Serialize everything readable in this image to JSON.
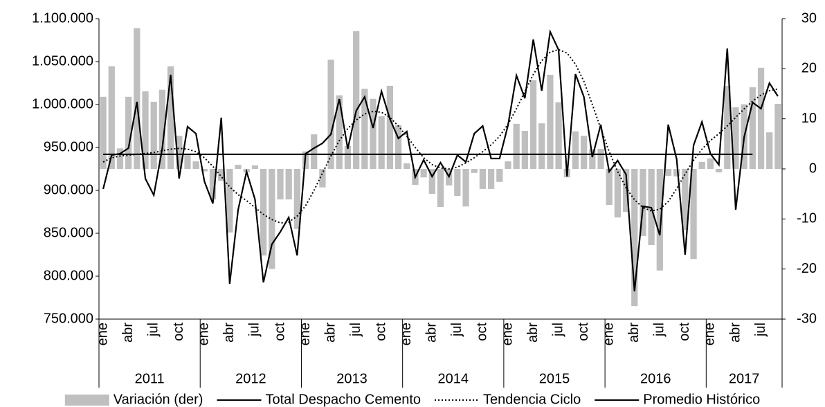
{
  "chart_data": {
    "type": "bar_line",
    "categories": [
      "ene",
      null,
      null,
      "abr",
      null,
      null,
      "jul",
      null,
      null,
      "oct",
      null,
      null,
      "ene",
      null,
      null,
      "abr",
      null,
      null,
      "jul",
      null,
      null,
      "oct",
      null,
      null,
      "ene",
      null,
      null,
      "abr",
      null,
      null,
      "jul",
      null,
      null,
      "oct",
      null,
      null,
      "ene",
      null,
      null,
      "abr",
      null,
      null,
      "jul",
      null,
      null,
      "oct",
      null,
      null,
      "ene",
      null,
      null,
      "abr",
      null,
      null,
      "jul",
      null,
      null,
      "oct",
      null,
      null,
      "ene",
      null,
      null,
      "abr",
      null,
      null,
      "jul",
      null,
      null,
      "oct",
      null,
      null,
      "ene",
      null,
      null,
      "abr",
      null,
      null,
      "jul",
      null,
      null
    ],
    "years": [
      "2011",
      "2012",
      "2013",
      "2014",
      "2015",
      "2016",
      "2017"
    ],
    "series": [
      {
        "name": "Variación (der)",
        "type": "bar",
        "axis": "y2",
        "color": "#bfbfbf",
        "values": [
          14.4,
          20.5,
          4.1,
          14.4,
          28.1,
          15.5,
          13.4,
          15.8,
          20.5,
          6.6,
          3.0,
          1.5,
          -0.5,
          -6.1,
          -2.4,
          -12.7,
          0.8,
          -0.7,
          0.7,
          -17.3,
          -20.0,
          -6.1,
          -6.1,
          -12.0,
          3.5,
          6.9,
          -3.7,
          21.8,
          14.7,
          4.6,
          27.5,
          16.0,
          14.0,
          10.5,
          16.6,
          8.7,
          1.1,
          -3.2,
          -1.7,
          -5.0,
          -7.6,
          -3.3,
          -5.4,
          -7.5,
          -0.8,
          -4.0,
          -4.0,
          -2.6,
          1.5,
          9.0,
          7.6,
          17.7,
          9.1,
          18.8,
          13.3,
          -1.7,
          7.5,
          6.6,
          3.9,
          4.0,
          -7.2,
          -9.7,
          -8.6,
          -27.4,
          -13.4,
          -15.2,
          -20.3,
          -1.4,
          -1.5,
          -12.2,
          -18.0,
          1.4,
          2.1,
          -0.7,
          16.6,
          12.3,
          12.9,
          16.3,
          20.2,
          7.3,
          13.0
        ]
      },
      {
        "name": "Total Despacho Cemento",
        "type": "line",
        "color": "#000000",
        "values": [
          901600,
          941100,
          942700,
          949200,
          1003200,
          913700,
          894400,
          948400,
          1034700,
          913700,
          974200,
          966100,
          910500,
          884700,
          984700,
          791100,
          877400,
          921800,
          889500,
          792700,
          837100,
          851600,
          868500,
          824200,
          942700,
          949200,
          954800,
          965300,
          1006400,
          948400,
          992700,
          1008900,
          972600,
          1015300,
          983100,
          960500,
          968500,
          915300,
          935500,
          916100,
          932300,
          916100,
          941100,
          933100,
          966100,
          975000,
          937100,
          937100,
          975800,
          1033900,
          1007300,
          1075800,
          1016100,
          1084700,
          1063700,
          916100,
          1035500,
          1008900,
          938700,
          976600,
          921800,
          934700,
          918500,
          782300,
          881400,
          879800,
          847600,
          976600,
          936300,
          825000,
          952400,
          979800,
          942700,
          929800,
          1065300,
          877400,
          962100,
          1002400,
          995200,
          1025000,
          1009700
        ]
      },
      {
        "name": "Tendencia Ciclo",
        "type": "line",
        "dash": "dotted",
        "color": "#000000",
        "values": [
          933000,
          938000,
          940000,
          941000,
          942000,
          943000,
          944000,
          946000,
          948000,
          949000,
          948000,
          945000,
          938000,
          928000,
          916000,
          904000,
          895000,
          888000,
          880000,
          872000,
          866000,
          862000,
          863000,
          870000,
          882000,
          900000,
          920000,
          940000,
          958000,
          972000,
          982000,
          989000,
          992000,
          991000,
          985000,
          975000,
          963000,
          950000,
          938000,
          930000,
          926000,
          925000,
          927000,
          932000,
          938000,
          945000,
          953000,
          963000,
          977000,
          995000,
          1015000,
          1035000,
          1051000,
          1061000,
          1064000,
          1060000,
          1047000,
          1027000,
          1000000,
          972000,
          945000,
          922000,
          903000,
          889000,
          880000,
          876000,
          878000,
          887000,
          902000,
          919000,
          935000,
          948000,
          958000,
          966000,
          975000,
          985000,
          995000,
          1004000,
          1011000,
          1016000,
          1018000
        ]
      },
      {
        "name": "Promedio Histórico",
        "type": "line",
        "color": "#000000",
        "values": [
          942000,
          942000,
          942000,
          942000,
          942000,
          942000,
          942000,
          942000,
          942000,
          942000,
          942000,
          942000,
          942000,
          942000,
          942000,
          942000,
          942000,
          942000,
          942000,
          942000,
          942000,
          942000,
          942000,
          942000,
          942000,
          942000,
          942000,
          942000,
          942000,
          942000,
          942000,
          942000,
          942000,
          942000,
          942000,
          942000,
          942000,
          942000,
          942000,
          942000,
          942000,
          942000,
          942000,
          942000,
          942000,
          942000,
          942000,
          942000,
          942000,
          942000,
          942000,
          942000,
          942000,
          942000,
          942000,
          942000,
          942000,
          942000,
          942000,
          942000,
          942000,
          942000,
          942000,
          942000,
          942000,
          942000,
          942000,
          942000,
          942000,
          942000,
          942000,
          942000,
          942000,
          942000,
          942000,
          942000,
          942000,
          942000,
          null,
          null,
          null
        ]
      }
    ],
    "ylim": [
      750000,
      1100000
    ],
    "yticks": [
      {
        "value": 750000,
        "label": "750.000"
      },
      {
        "value": 800000,
        "label": "800.000"
      },
      {
        "value": 850000,
        "label": "850.000"
      },
      {
        "value": 900000,
        "label": "900.000"
      },
      {
        "value": 950000,
        "label": "950.000"
      },
      {
        "value": 1000000,
        "label": "1.000.000"
      },
      {
        "value": 1050000,
        "label": "1.050.000"
      },
      {
        "value": 1100000,
        "label": "1.100.000"
      }
    ],
    "y2lim": [
      -30,
      30
    ],
    "y2ticks": [
      -30,
      -20,
      -10,
      0,
      10,
      20,
      30
    ],
    "legend": "bottom"
  }
}
